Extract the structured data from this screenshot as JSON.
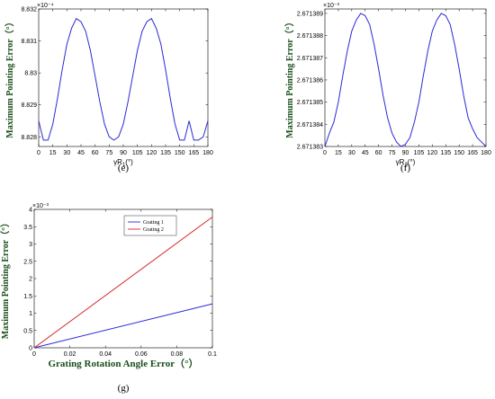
{
  "chart_data": [
    {
      "id": "e",
      "type": "line",
      "caption": "(e)",
      "ylabel": "Maximum Pointing Error（°）",
      "xlabel_main": "γR",
      "xlabel_sub": "1",
      "xlabel_suffix": "(°)",
      "y_exponent": "×10⁻⁴",
      "xlim": [
        0,
        180
      ],
      "ylim": [
        8.8277,
        8.832
      ],
      "xticks": [
        "0",
        "15",
        "30",
        "45",
        "60",
        "75",
        "90",
        "105",
        "120",
        "135",
        "150",
        "165",
        "180"
      ],
      "yticks": [
        "8.828",
        "8.829",
        "8.83",
        "8.831",
        "8.832"
      ],
      "series": [
        {
          "color": "#2a2ad6",
          "x": [
            0,
            5,
            10,
            15,
            20,
            25,
            30,
            35,
            40,
            45,
            50,
            55,
            60,
            65,
            70,
            75,
            80,
            85,
            90,
            95,
            100,
            105,
            110,
            115,
            120,
            125,
            130,
            135,
            140,
            145,
            150,
            155,
            160,
            165,
            170,
            175,
            180
          ],
          "y": [
            8.8285,
            8.8279,
            8.8279,
            8.8284,
            8.8292,
            8.8301,
            8.8309,
            8.8314,
            8.8317,
            8.8316,
            8.8313,
            8.8307,
            8.8299,
            8.8291,
            8.8284,
            8.828,
            8.8279,
            8.828,
            8.8284,
            8.8291,
            8.8299,
            8.8307,
            8.8313,
            8.8316,
            8.8317,
            8.8314,
            8.8309,
            8.8301,
            8.8292,
            8.8284,
            8.8279,
            8.8279,
            8.8285,
            8.8279,
            8.8279,
            8.828,
            8.8285
          ]
        }
      ]
    },
    {
      "id": "f",
      "type": "line",
      "caption": "(f)",
      "ylabel": "Maximum Pointing Error（°）",
      "xlabel_main": "γR",
      "xlabel_sub": "3",
      "xlabel_suffix": "(°)",
      "y_exponent": "×10⁻³",
      "xlim": [
        0,
        180
      ],
      "ylim": [
        2.671383,
        2.6713892
      ],
      "xticks": [
        "0",
        "15",
        "30",
        "45",
        "60",
        "75",
        "90",
        "105",
        "120",
        "135",
        "150",
        "165",
        "180"
      ],
      "yticks": [
        "2.671383",
        "2.671384",
        "2.671385",
        "2.671386",
        "2.671387",
        "2.671388",
        "2.671389"
      ],
      "series": [
        {
          "color": "#2a2ad6",
          "x": [
            0,
            5,
            10,
            15,
            20,
            25,
            30,
            35,
            40,
            45,
            50,
            55,
            60,
            65,
            70,
            75,
            80,
            85,
            90,
            95,
            100,
            105,
            110,
            115,
            120,
            125,
            130,
            135,
            140,
            145,
            150,
            155,
            160,
            165,
            170,
            175,
            180
          ],
          "y": [
            2.671383,
            2.6713836,
            2.6713841,
            2.671385,
            2.6713862,
            2.6713873,
            2.6713882,
            2.6713887,
            2.671389,
            2.6713889,
            2.6713885,
            2.6713876,
            2.6713865,
            2.6713853,
            2.6713843,
            2.6713836,
            2.6713832,
            2.671383,
            2.6713831,
            2.6713834,
            2.6713841,
            2.671385,
            2.6713862,
            2.6713873,
            2.6713882,
            2.6713887,
            2.671389,
            2.6713889,
            2.6713885,
            2.6713876,
            2.6713865,
            2.6713853,
            2.6713843,
            2.6713838,
            2.6713834,
            2.6713832,
            2.671383
          ]
        }
      ]
    },
    {
      "id": "g",
      "type": "line",
      "caption": "(g)",
      "ylabel": "Maximum Pointing Error（°）",
      "xlabel": "Grating Rotation Angle Error（°）",
      "y_exponent": "×10⁻³",
      "xlim": [
        0,
        0.1
      ],
      "ylim": [
        0,
        4
      ],
      "xticks": [
        "0",
        "0.02",
        "0.04",
        "0.06",
        "0.08",
        "0.1"
      ],
      "yticks": [
        "0",
        "0.5",
        "1",
        "1.5",
        "2",
        "2.5",
        "3",
        "3.5",
        "4"
      ],
      "legend": "top-right",
      "series": [
        {
          "name": "Grating 1",
          "color": "#2a2ad6",
          "x": [
            0,
            0.1
          ],
          "y": [
            0,
            1.27
          ]
        },
        {
          "name": "Grating 2",
          "color": "#d62a2a",
          "x": [
            0,
            0.1
          ],
          "y": [
            0,
            3.78
          ]
        }
      ]
    }
  ]
}
